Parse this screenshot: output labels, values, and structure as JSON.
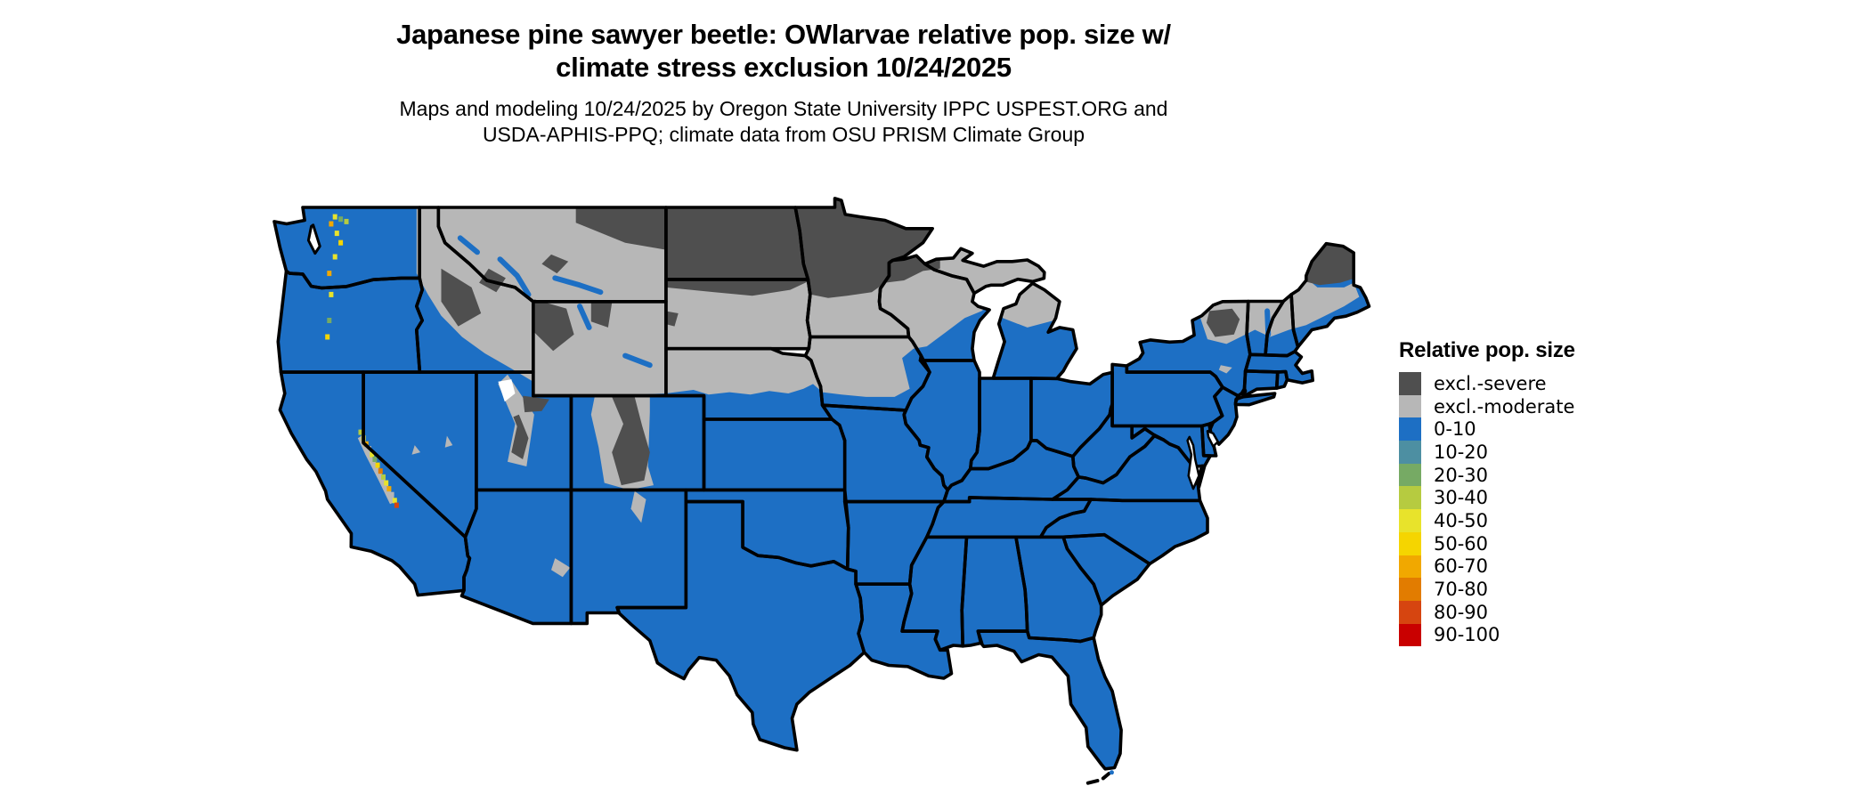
{
  "title": {
    "line1": "Japanese pine sawyer beetle: OWlarvae relative pop. size w/",
    "line2": "climate stress exclusion 10/24/2025"
  },
  "subtitle": {
    "line1": "Maps and modeling 10/24/2025 by Oregon State University IPPC USPEST.ORG and",
    "line2": "USDA-APHIS-PPQ; climate data from OSU PRISM Climate Group"
  },
  "legend": {
    "title": "Relative pop. size",
    "items": [
      {
        "label": "excl.-severe",
        "color": "#4f4f4f"
      },
      {
        "label": "excl.-moderate",
        "color": "#b7b7b7"
      },
      {
        "label": "0-10",
        "color": "#1d6fc4"
      },
      {
        "label": "10-20",
        "color": "#4d8fa2"
      },
      {
        "label": "20-30",
        "color": "#76aa64"
      },
      {
        "label": "30-40",
        "color": "#b6cb40"
      },
      {
        "label": "40-50",
        "color": "#e8e32b"
      },
      {
        "label": "50-60",
        "color": "#f5d500"
      },
      {
        "label": "60-70",
        "color": "#f1a800"
      },
      {
        "label": "70-80",
        "color": "#e27c00"
      },
      {
        "label": "80-90",
        "color": "#d64510"
      },
      {
        "label": "90-100",
        "color": "#c90000"
      }
    ]
  },
  "map": {
    "region": "contiguous United States",
    "background_color": "#ffffff",
    "border_color": "#000000",
    "dominant_class": "0-10",
    "excluded_moderate_color": "#b7b7b7",
    "excluded_severe_color": "#4f4f4f"
  }
}
